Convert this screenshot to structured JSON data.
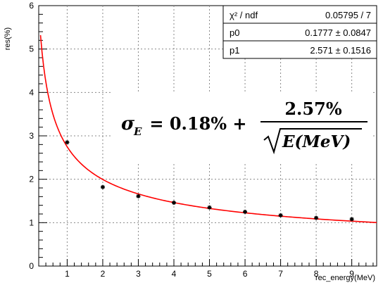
{
  "chart_data": {
    "type": "scatter",
    "xlabel": "rec_energy(MeV)",
    "ylabel": "res(%)",
    "xlim": [
      0.2,
      9.7
    ],
    "ylim": [
      0,
      6
    ],
    "x_ticks": [
      1,
      2,
      3,
      4,
      5,
      6,
      7,
      8,
      9
    ],
    "y_ticks": [
      0,
      1,
      2,
      3,
      4,
      5,
      6
    ],
    "grid": true,
    "points": [
      {
        "x": 1,
        "y": 2.85
      },
      {
        "x": 2,
        "y": 1.82
      },
      {
        "x": 3,
        "y": 1.61
      },
      {
        "x": 4,
        "y": 1.46
      },
      {
        "x": 5,
        "y": 1.35
      },
      {
        "x": 6,
        "y": 1.25
      },
      {
        "x": 7,
        "y": 1.17
      },
      {
        "x": 8,
        "y": 1.11
      },
      {
        "x": 9,
        "y": 1.08
      }
    ],
    "fit": {
      "function": "p0 + p1/sqrt(E)",
      "p0": 0.1777,
      "p1": 2.571,
      "color": "#ff0000",
      "x_range": [
        0.25,
        9.7
      ]
    },
    "stats_box": {
      "rows": [
        {
          "label": "χ² / ndf",
          "value": "0.05795 / 7"
        },
        {
          "label": "p0",
          "value": "0.1777 ± 0.0847"
        },
        {
          "label": "p1",
          "value": "2.571 ± 0.1516"
        }
      ]
    },
    "annotation": {
      "lhs": "σ",
      "lhs_sub": "E",
      "middle": " = 0.18% +",
      "numerator": "2.57%",
      "denominator": "E(MeV)"
    }
  }
}
